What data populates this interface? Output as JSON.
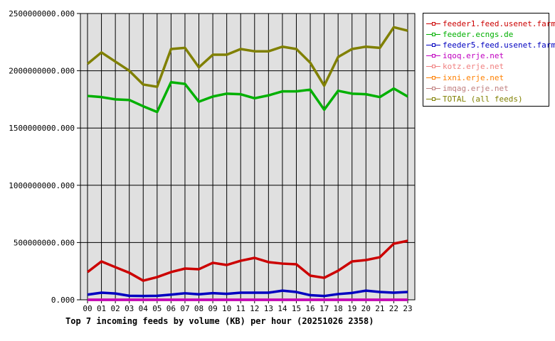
{
  "chart_data": {
    "type": "line",
    "title": "Top 7 incoming feeds by volume (KB) per hour (20251026 2358)",
    "xlabel": "",
    "ylabel": "",
    "ylim": [
      0,
      2500000000
    ],
    "yticks": [
      "0.000",
      "500000000.000",
      "1000000000.000",
      "1500000000.000",
      "2000000000.000",
      "2500000000.000"
    ],
    "grid": true,
    "legend_position": "right",
    "categories": [
      "00",
      "01",
      "02",
      "03",
      "04",
      "05",
      "06",
      "07",
      "08",
      "09",
      "10",
      "11",
      "12",
      "13",
      "14",
      "15",
      "16",
      "17",
      "18",
      "19",
      "20",
      "21",
      "22",
      "23"
    ],
    "series": [
      {
        "name": "feeder1.feed.usenet.farm",
        "color": "#cc0000",
        "values": [
          242000000,
          335000000,
          285000000,
          236000000,
          167000000,
          198000000,
          242000000,
          273000000,
          267000000,
          323000000,
          304000000,
          341000000,
          366000000,
          329000000,
          316000000,
          310000000,
          211000000,
          192000000,
          254000000,
          335000000,
          347000000,
          372000000,
          490000000,
          515000000
        ]
      },
      {
        "name": "feeder.ecngs.de",
        "color": "#00b000",
        "values": [
          1780000000,
          1770000000,
          1750000000,
          1745000000,
          1690000000,
          1640000000,
          1900000000,
          1885000000,
          1730000000,
          1775000000,
          1800000000,
          1795000000,
          1760000000,
          1785000000,
          1820000000,
          1820000000,
          1835000000,
          1660000000,
          1825000000,
          1800000000,
          1795000000,
          1770000000,
          1845000000,
          1775000000
        ]
      },
      {
        "name": "feeder5.feed.usenet.farm",
        "color": "#0000c0",
        "values": [
          45000000,
          62000000,
          55000000,
          35000000,
          33000000,
          35000000,
          45000000,
          57000000,
          48000000,
          58000000,
          52000000,
          62000000,
          62000000,
          62000000,
          80000000,
          68000000,
          40000000,
          33000000,
          50000000,
          60000000,
          80000000,
          68000000,
          62000000,
          68000000
        ]
      },
      {
        "name": "iqoq.erje.net",
        "color": "#c000c0",
        "values": [
          0,
          0,
          0,
          0,
          0,
          0,
          0,
          0,
          0,
          0,
          0,
          0,
          0,
          0,
          0,
          0,
          0,
          0,
          0,
          0,
          0,
          0,
          0,
          0
        ]
      },
      {
        "name": "kotz.erje.net",
        "color": "#f08080",
        "values": [
          0,
          0,
          0,
          0,
          0,
          0,
          0,
          0,
          0,
          0,
          0,
          0,
          0,
          0,
          0,
          0,
          0,
          0,
          0,
          0,
          0,
          0,
          0,
          0
        ]
      },
      {
        "name": "ixni.erje.net",
        "color": "#ff8000",
        "values": [
          0,
          0,
          0,
          0,
          0,
          0,
          0,
          0,
          0,
          0,
          0,
          0,
          0,
          0,
          0,
          0,
          0,
          0,
          0,
          0,
          0,
          0,
          0,
          0
        ]
      },
      {
        "name": "imqag.erje.net",
        "color": "#c08080",
        "values": [
          0,
          0,
          0,
          0,
          0,
          0,
          0,
          0,
          0,
          0,
          0,
          0,
          0,
          0,
          0,
          0,
          0,
          0,
          0,
          0,
          0,
          0,
          0,
          0
        ]
      },
      {
        "name": "TOTAL (all feeds)",
        "color": "#808000",
        "values": [
          2060000000,
          2160000000,
          2080000000,
          2000000000,
          1880000000,
          1860000000,
          2190000000,
          2200000000,
          2030000000,
          2140000000,
          2140000000,
          2190000000,
          2170000000,
          2170000000,
          2210000000,
          2190000000,
          2070000000,
          1870000000,
          2120000000,
          2190000000,
          2210000000,
          2200000000,
          2380000000,
          2350000000
        ]
      }
    ]
  }
}
